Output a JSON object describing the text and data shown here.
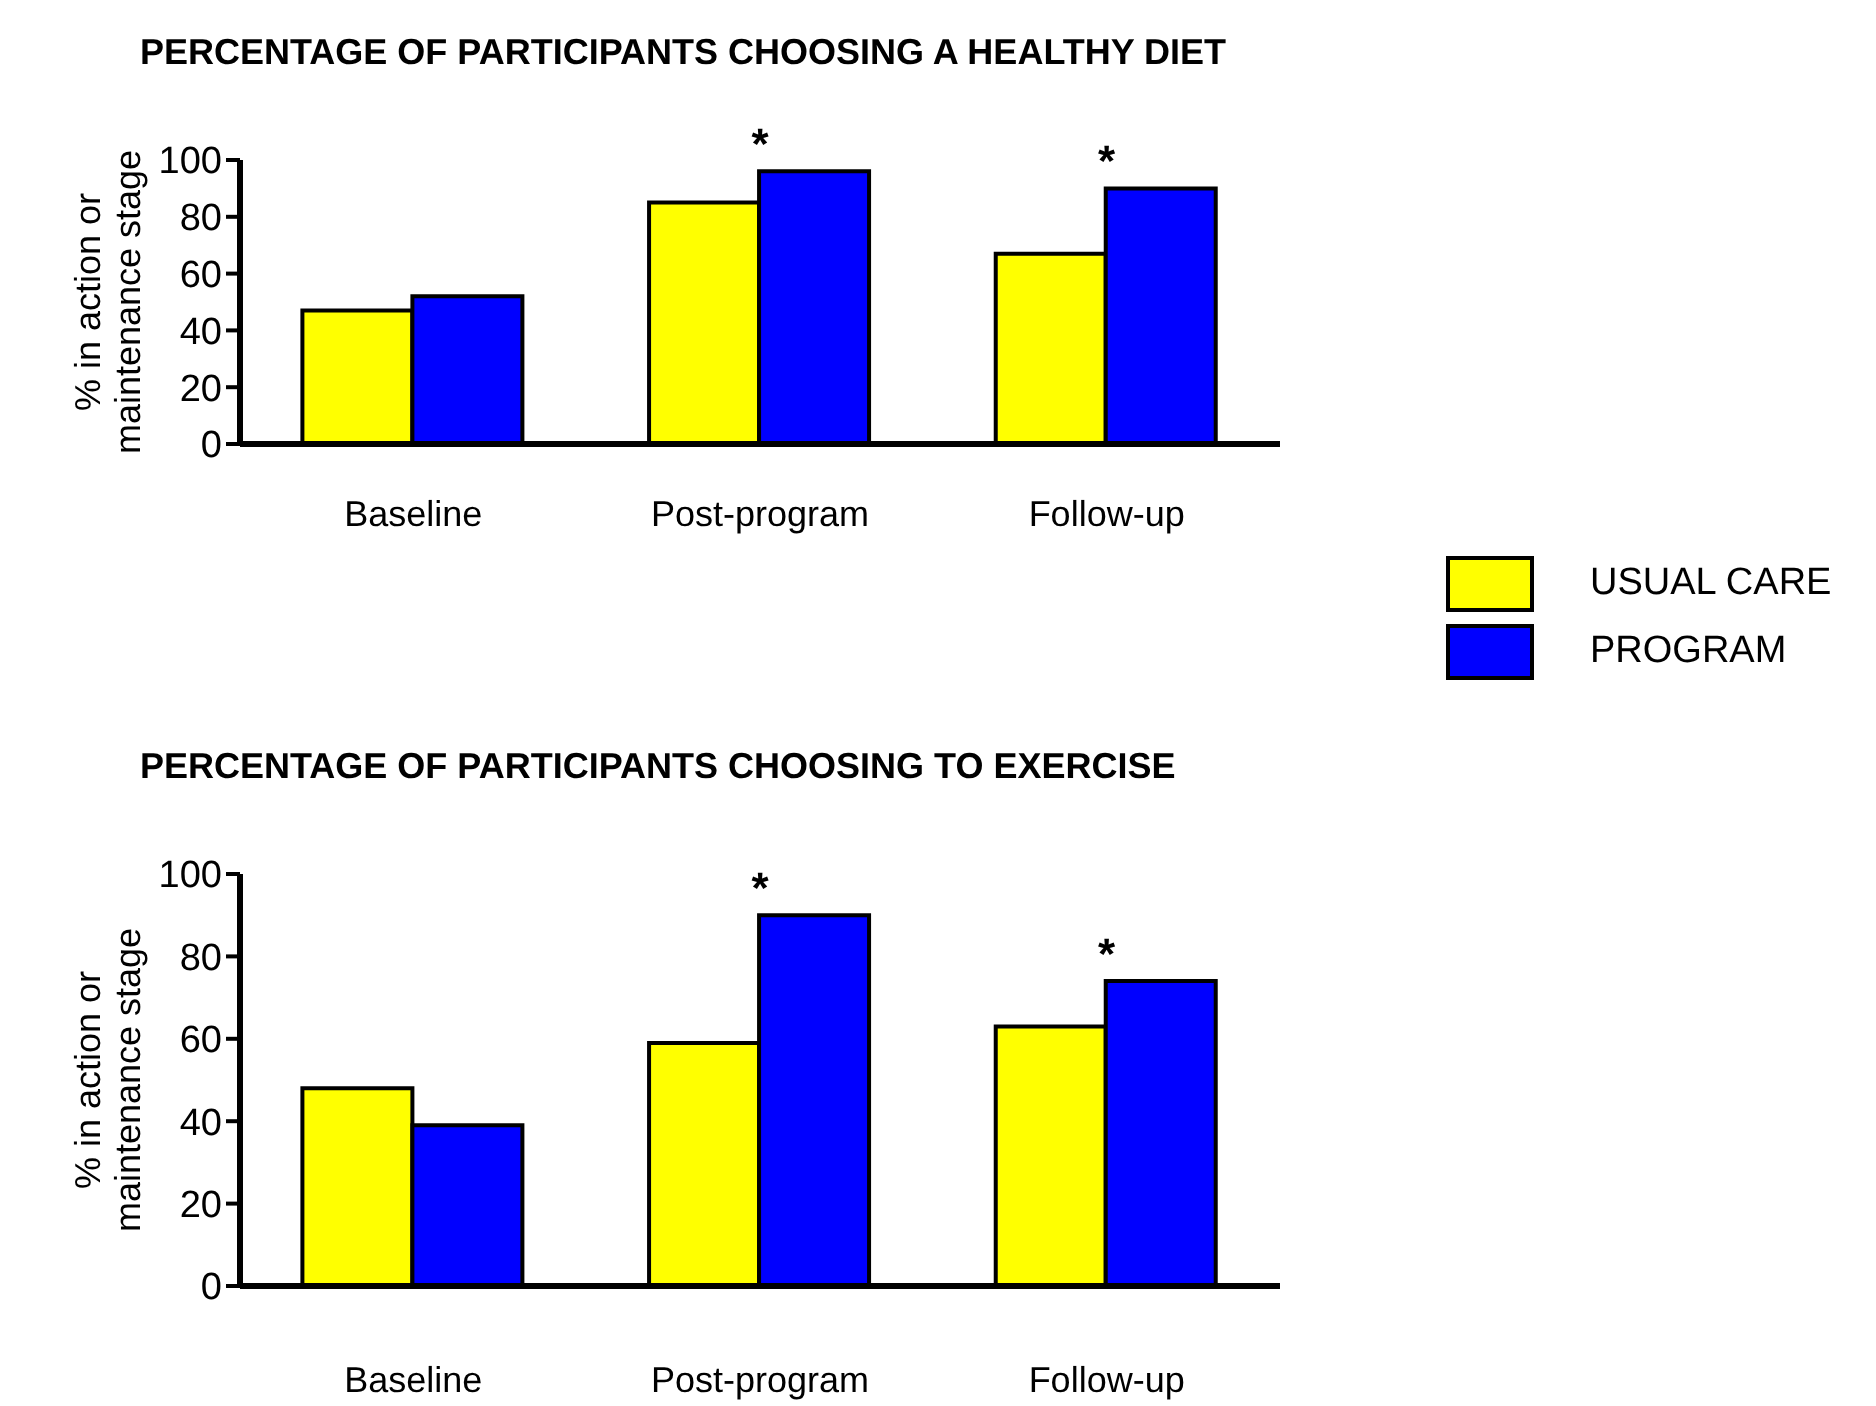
{
  "chart_data": [
    {
      "type": "bar",
      "title": "PERCENTAGE OF PARTICIPANTS CHOOSING A HEALTHY DIET",
      "ylabel": "% in action or maintenance stage",
      "categories": [
        "Baseline",
        "Post-program",
        "Follow-up"
      ],
      "series": [
        {
          "name": "USUAL CARE",
          "color": "#ffff00",
          "values": [
            47,
            85,
            67
          ]
        },
        {
          "name": "PROGRAM",
          "color": "#0000ff",
          "values": [
            52,
            96,
            90
          ]
        }
      ],
      "ylim": [
        0,
        100
      ],
      "yticks": [
        0,
        20,
        40,
        60,
        80,
        100
      ],
      "grid": false,
      "legend": "right",
      "annotations": [
        {
          "text": "*",
          "x": "Post-program",
          "y": 96
        },
        {
          "text": "*",
          "x": "Follow-up",
          "y": 90
        }
      ]
    },
    {
      "type": "bar",
      "title": "PERCENTAGE OF PARTICIPANTS CHOOSING TO EXERCISE",
      "ylabel": "% in action or maintenance stage",
      "categories": [
        "Baseline",
        "Post-program",
        "Follow-up"
      ],
      "series": [
        {
          "color": "#ffff00",
          "values": [
            48,
            59,
            63
          ]
        },
        {
          "color": "#0000ff",
          "values": [
            39,
            90,
            74
          ]
        }
      ],
      "ylim": [
        0,
        100
      ],
      "yticks": [
        0,
        20,
        40,
        60,
        80,
        100
      ],
      "grid": false,
      "legend": false,
      "annotations": [
        {
          "text": "*",
          "x": "Post-program",
          "y": 90
        },
        {
          "text": "*",
          "x": "Follow-up",
          "y": 74
        }
      ]
    }
  ]
}
